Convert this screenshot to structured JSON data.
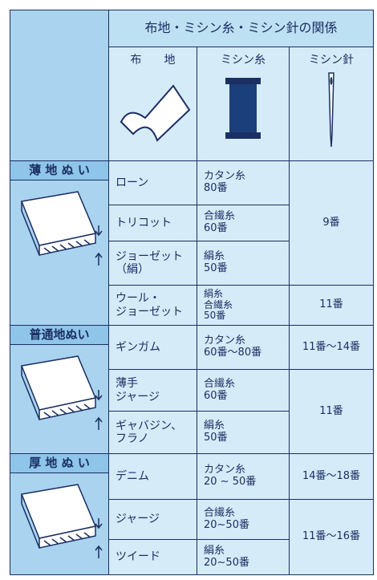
{
  "header": {
    "title": "布地・ミシン糸・ミシン針の関係",
    "col_heads": [
      "布　　地",
      "ミシン糸",
      "ミシン針"
    ]
  },
  "sections": [
    {
      "label": "薄 地 ぬ い",
      "rows": [
        {
          "fabric": [
            "ローン"
          ],
          "thread": [
            "カタン糸",
            "80番"
          ]
        },
        {
          "fabric": [
            "トリコット"
          ],
          "thread": [
            "合繊糸",
            "60番"
          ]
        },
        {
          "fabric": [
            "ジョーゼット",
            "（絹）"
          ],
          "thread": [
            "絹糸",
            "50番"
          ]
        },
        {
          "fabric": [
            "ウール・",
            "ジョーゼット"
          ],
          "thread": [
            "絹糸",
            "合繊糸",
            "50番"
          ]
        }
      ],
      "needles": [
        "9番",
        "11番"
      ]
    },
    {
      "label": "普通地ぬい",
      "rows": [
        {
          "fabric": [
            "ギンガム"
          ],
          "thread": [
            "カタン糸",
            "60番〜80番"
          ]
        },
        {
          "fabric": [
            "薄手",
            "ジャージ"
          ],
          "thread": [
            "合繊糸",
            "60番"
          ]
        },
        {
          "fabric": [
            "ギャバジン、",
            "フラノ"
          ],
          "thread": [
            "絹糸",
            "50番"
          ]
        }
      ],
      "needles": [
        "11番〜14番",
        "11番"
      ]
    },
    {
      "label": "厚 地 ぬ い",
      "rows": [
        {
          "fabric": [
            "デニム"
          ],
          "thread": [
            "カタン糸",
            "20 ~ 50番"
          ]
        },
        {
          "fabric": [
            "ジャージ"
          ],
          "thread": [
            "合繊糸",
            "20~50番"
          ]
        },
        {
          "fabric": [
            "ツイード"
          ],
          "thread": [
            "絹糸",
            "20~50番"
          ]
        }
      ],
      "needles": [
        "14番〜18番",
        "11番〜16番"
      ]
    }
  ]
}
